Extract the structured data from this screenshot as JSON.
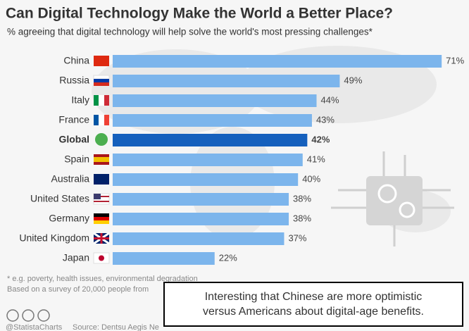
{
  "chart_data": {
    "type": "bar",
    "title": "Can Digital Technology Make the World a Better Place?",
    "subtitle": "% agreeing that digital technology will help solve the world's most pressing challenges*",
    "categories": [
      "China",
      "Russia",
      "Italy",
      "France",
      "Global",
      "Spain",
      "Australia",
      "United States",
      "Germany",
      "United Kingdom",
      "Japan"
    ],
    "values": [
      71,
      49,
      44,
      43,
      42,
      41,
      40,
      38,
      38,
      37,
      22
    ],
    "value_labels": [
      "71%",
      "49%",
      "44%",
      "43%",
      "42%",
      "41%",
      "40%",
      "38%",
      "38%",
      "37%",
      "22%"
    ],
    "colors": [
      "#7cb5ec",
      "#7cb5ec",
      "#7cb5ec",
      "#7cb5ec",
      "#1560bd",
      "#7cb5ec",
      "#7cb5ec",
      "#7cb5ec",
      "#7cb5ec",
      "#7cb5ec",
      "#7cb5ec"
    ],
    "footnotes": [
      "* e.g. poverty, health issues, environmental degradation",
      "Based on a survey of 20,000 people from"
    ],
    "credit": "@StatistaCharts",
    "source": "Source: Dentsu Aegis Ne",
    "annotation": [
      "Interesting that Chinese are more optimistic",
      "versus Americans about digital-age benefits."
    ]
  }
}
